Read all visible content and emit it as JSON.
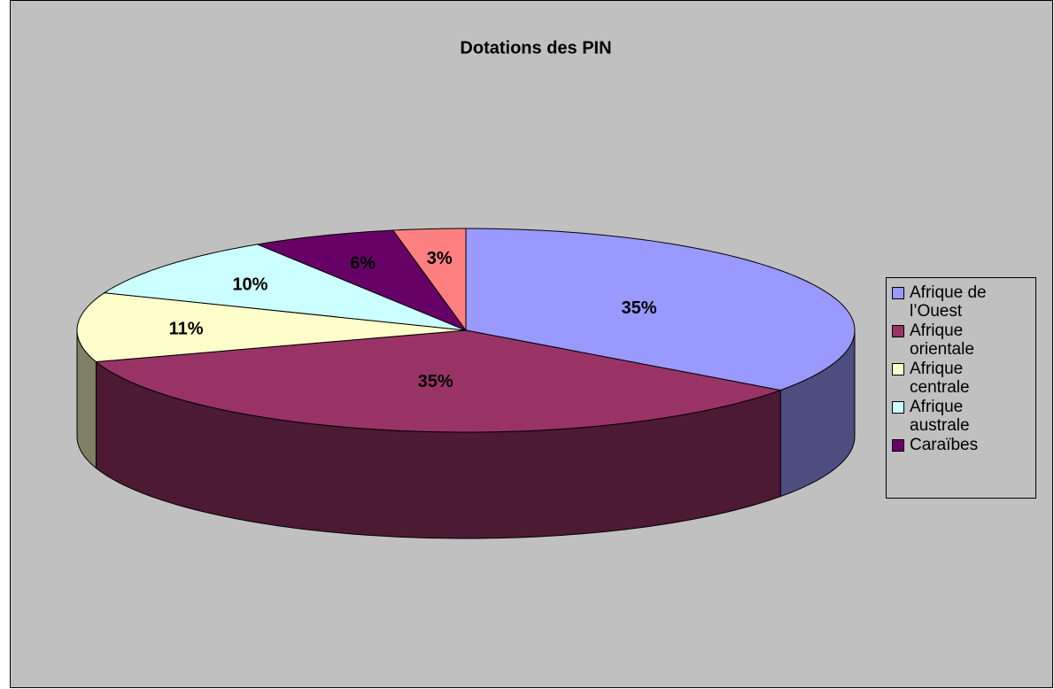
{
  "chart_data": {
    "type": "pie",
    "title": "Dotations des PIN",
    "categories": [
      "Afrique de l’Ouest",
      "Afrique orientale",
      "Afrique centrale",
      "Afrique australe",
      "Caraïbes",
      null
    ],
    "values": [
      35,
      35,
      11,
      10,
      6,
      3
    ],
    "value_labels": [
      "35%",
      "35%",
      "11%",
      "10%",
      "6%",
      "3%"
    ],
    "colors": [
      "#9999ff",
      "#993366",
      "#ffffcc",
      "#ccffff",
      "#660066",
      "#ff8080"
    ],
    "legend": "right"
  }
}
